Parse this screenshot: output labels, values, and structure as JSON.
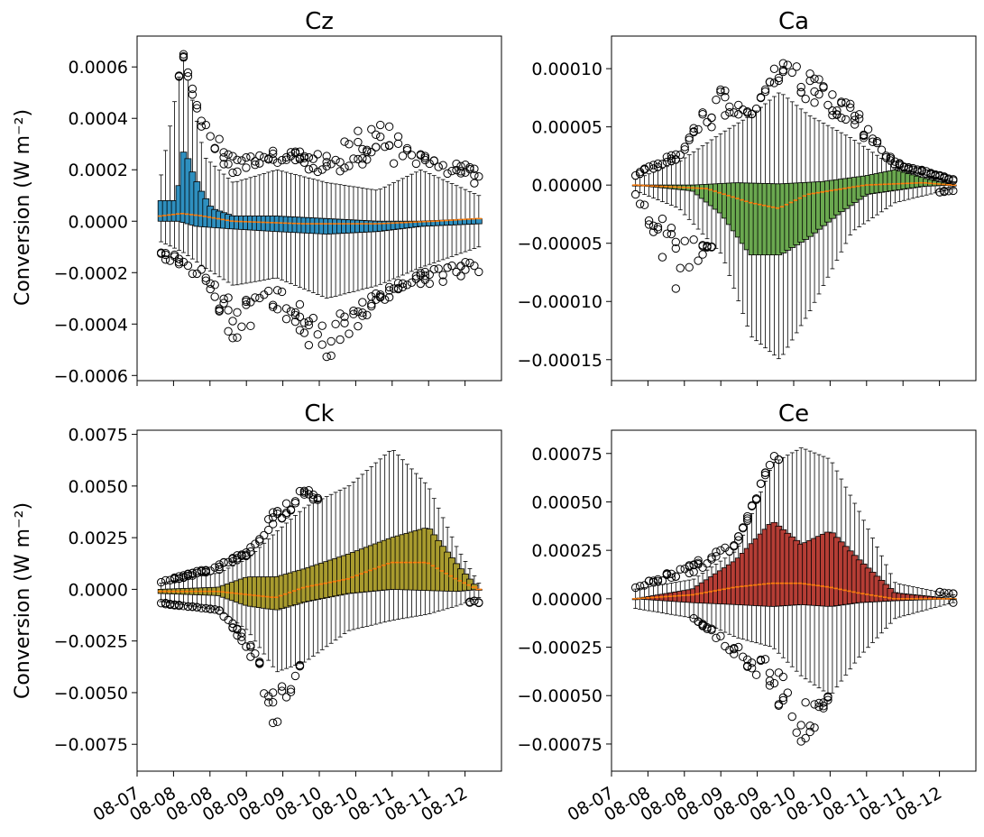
{
  "chart_data": [
    {
      "type": "box",
      "title": "Cz",
      "ylabel": "Conversion  (W m⁻²)",
      "ylim": [
        -0.00062,
        0.00072
      ],
      "yticks": [
        -0.0006,
        -0.0004,
        -0.0002,
        0.0,
        0.0002,
        0.0004,
        0.0006
      ],
      "ytick_labels": [
        "−0.0006",
        "−0.0004",
        "−0.0002",
        "0.0000",
        "0.0002",
        "0.0004",
        "0.0006"
      ],
      "xlim": [
        0,
        5
      ],
      "xtick_labels": [],
      "box_color": "#2e8fbf",
      "median_color": "#ff7f0e",
      "n_boxes": 72,
      "x_start": 0.33,
      "x_end": 4.75,
      "profile": {
        "q3": [
          [
            0.0,
            8e-05
          ],
          [
            0.22,
            8e-05
          ],
          [
            0.32,
            0.00029
          ],
          [
            0.42,
            0.0002
          ],
          [
            0.55,
            0.00012
          ],
          [
            0.7,
            5e-05
          ],
          [
            1.0,
            2e-05
          ],
          [
            1.6,
            2e-05
          ],
          [
            2.3,
            1e-05
          ],
          [
            3.0,
            0.0
          ],
          [
            3.6,
            0.0
          ],
          [
            4.4,
            1e-05
          ]
        ],
        "q1": [
          [
            0.0,
            0.0
          ],
          [
            0.25,
            0.0
          ],
          [
            0.5,
            -2e-05
          ],
          [
            1.0,
            -3e-05
          ],
          [
            1.6,
            -4e-05
          ],
          [
            2.3,
            -5e-05
          ],
          [
            3.0,
            -4e-05
          ],
          [
            3.6,
            -2e-05
          ],
          [
            4.4,
            -1e-05
          ]
        ],
        "median": [
          [
            0.0,
            2e-05
          ],
          [
            0.3,
            3e-05
          ],
          [
            0.6,
            2e-05
          ],
          [
            1.0,
            0.0
          ],
          [
            2.0,
            -1e-05
          ],
          [
            3.0,
            -1e-05
          ],
          [
            3.8,
            0.0
          ],
          [
            4.4,
            1e-05
          ]
        ],
        "whi_hi": [
          [
            0.0,
            0.00018
          ],
          [
            0.3,
            0.00064
          ],
          [
            0.45,
            0.00045
          ],
          [
            0.6,
            0.00025
          ],
          [
            1.0,
            0.00015
          ],
          [
            1.6,
            0.0002
          ],
          [
            2.3,
            0.00015
          ],
          [
            3.0,
            0.00012
          ],
          [
            3.6,
            0.0002
          ],
          [
            4.4,
            0.0001
          ]
        ],
        "whi_lo": [
          [
            0.0,
            -8e-05
          ],
          [
            0.3,
            -0.00012
          ],
          [
            0.6,
            -0.00018
          ],
          [
            1.0,
            -0.00025
          ],
          [
            1.6,
            -0.00022
          ],
          [
            2.3,
            -0.0003
          ],
          [
            3.0,
            -0.00025
          ],
          [
            3.6,
            -0.00018
          ],
          [
            4.4,
            -0.0001
          ]
        ],
        "flier_hi": [
          [
            0.0,
            0.00012
          ],
          [
            0.3,
            0.00066
          ],
          [
            0.45,
            0.0005
          ],
          [
            0.6,
            0.00042
          ],
          [
            1.0,
            0.00025
          ],
          [
            1.6,
            0.00028
          ],
          [
            2.3,
            0.00026
          ],
          [
            3.0,
            0.00044
          ],
          [
            3.6,
            0.00026
          ],
          [
            4.4,
            0.00022
          ]
        ],
        "flier_lo": [
          [
            0.0,
            -0.00015
          ],
          [
            0.3,
            -0.0002
          ],
          [
            0.6,
            -0.00022
          ],
          [
            1.0,
            -0.00048
          ],
          [
            1.6,
            -0.00035
          ],
          [
            2.3,
            -0.00056
          ],
          [
            3.0,
            -0.00032
          ],
          [
            3.6,
            -0.00025
          ],
          [
            4.4,
            -0.00022
          ]
        ]
      }
    },
    {
      "type": "box",
      "title": "Ca",
      "ylabel": "",
      "ylim": [
        -0.000168,
        0.000128
      ],
      "yticks": [
        -0.00015,
        -0.0001,
        -5e-05,
        0.0,
        5e-05,
        0.0001
      ],
      "ytick_labels": [
        "−0.00015",
        "−0.00010",
        "−0.00005",
        "0.00000",
        "0.00005",
        "0.00010"
      ],
      "xlim": [
        0,
        5
      ],
      "xtick_labels": [],
      "box_color": "#6aa84f",
      "median_color": "#ff7f0e",
      "n_boxes": 72,
      "x_start": 0.33,
      "x_end": 4.75,
      "profile": {
        "q3": [
          [
            0.0,
            0.0
          ],
          [
            0.8,
            0.0
          ],
          [
            1.4,
            2e-06
          ],
          [
            2.0,
            1e-06
          ],
          [
            2.6,
            3e-06
          ],
          [
            3.2,
            8e-06
          ],
          [
            3.6,
            1.3e-05
          ],
          [
            4.0,
            6e-06
          ],
          [
            4.4,
            0.0
          ]
        ],
        "q1": [
          [
            0.0,
            0.0
          ],
          [
            0.8,
            -5e-06
          ],
          [
            1.2,
            -2.5e-05
          ],
          [
            1.6,
            -6e-05
          ],
          [
            2.0,
            -6e-05
          ],
          [
            2.4,
            -4.5e-05
          ],
          [
            2.8,
            -2.5e-05
          ],
          [
            3.2,
            -8e-06
          ],
          [
            4.0,
            -1e-06
          ],
          [
            4.4,
            0.0
          ]
        ],
        "median": [
          [
            0.0,
            0.0
          ],
          [
            1.0,
            -3e-06
          ],
          [
            1.6,
            -1.5e-05
          ],
          [
            2.0,
            -2e-05
          ],
          [
            2.4,
            -8e-06
          ],
          [
            3.2,
            0.0
          ],
          [
            4.0,
            2e-06
          ],
          [
            4.4,
            0.0
          ]
        ],
        "whi_hi": [
          [
            0.0,
            5e-06
          ],
          [
            0.6,
            2e-05
          ],
          [
            1.2,
            4.5e-05
          ],
          [
            1.6,
            6e-05
          ],
          [
            2.0,
            8e-05
          ],
          [
            2.4,
            6e-05
          ],
          [
            3.0,
            4e-05
          ],
          [
            3.6,
            1.5e-05
          ],
          [
            4.4,
            3e-06
          ]
        ],
        "whi_lo": [
          [
            0.0,
            -5e-06
          ],
          [
            0.6,
            -2e-05
          ],
          [
            1.2,
            -6e-05
          ],
          [
            1.6,
            -0.00013
          ],
          [
            2.0,
            -0.00015
          ],
          [
            2.4,
            -0.00011
          ],
          [
            3.0,
            -4e-05
          ],
          [
            3.6,
            -1.5e-05
          ],
          [
            4.4,
            -3e-06
          ]
        ],
        "flier_hi": [
          [
            0.0,
            1e-05
          ],
          [
            0.6,
            3e-05
          ],
          [
            1.2,
            9e-05
          ],
          [
            1.6,
            6e-05
          ],
          [
            2.0,
            0.00011
          ],
          [
            2.4,
            0.0001
          ],
          [
            3.0,
            7e-05
          ],
          [
            3.6,
            2e-05
          ],
          [
            4.4,
            5e-06
          ]
        ],
        "flier_lo": [
          [
            0.0,
            -1e-05
          ],
          [
            0.6,
            -9.5e-05
          ],
          [
            1.2,
            -4e-05
          ],
          [
            1.6,
            -8e-05
          ],
          [
            2.0,
            -0.00014
          ],
          [
            2.4,
            -5e-05
          ],
          [
            3.0,
            -2e-05
          ],
          [
            3.6,
            -1e-05
          ],
          [
            4.4,
            -5e-06
          ]
        ]
      }
    },
    {
      "type": "box",
      "title": "Ck",
      "ylabel": "Conversion  (W m⁻²)",
      "ylim": [
        -0.0088,
        0.0077
      ],
      "yticks": [
        -0.0075,
        -0.005,
        -0.0025,
        0.0,
        0.0025,
        0.005,
        0.0075
      ],
      "ytick_labels": [
        "−0.0075",
        "−0.0050",
        "−0.0025",
        "0.0000",
        "0.0025",
        "0.0050",
        "0.0075"
      ],
      "xlim": [
        0,
        5
      ],
      "xtick_labels": [
        "08-07",
        "08-08",
        "08-08",
        "08-09",
        "08-09",
        "08-10",
        "08-10",
        "08-11",
        "08-11",
        "08-12"
      ],
      "box_color": "#a89b2e",
      "median_color": "#ff7f0e",
      "n_boxes": 72,
      "x_start": 0.33,
      "x_end": 4.75,
      "profile": {
        "q3": [
          [
            0.0,
            0.0
          ],
          [
            0.8,
            0.0001
          ],
          [
            1.2,
            0.0006
          ],
          [
            1.6,
            0.0006
          ],
          [
            2.0,
            0.001
          ],
          [
            2.6,
            0.0017
          ],
          [
            3.2,
            0.0025
          ],
          [
            3.7,
            0.003
          ],
          [
            4.1,
            0.0012
          ],
          [
            4.4,
            0.0
          ]
        ],
        "q1": [
          [
            0.0,
            -0.0002
          ],
          [
            0.8,
            -0.0003
          ],
          [
            1.2,
            -0.0008
          ],
          [
            1.6,
            -0.001
          ],
          [
            2.0,
            -0.0006
          ],
          [
            2.6,
            -0.0002
          ],
          [
            3.2,
            0.0
          ],
          [
            4.1,
            -0.0001
          ],
          [
            4.4,
            0.0
          ]
        ],
        "median": [
          [
            0.0,
            -0.0001
          ],
          [
            0.8,
            -0.0001
          ],
          [
            1.6,
            -0.0004
          ],
          [
            2.0,
            0.0001
          ],
          [
            2.6,
            0.0005
          ],
          [
            3.2,
            0.0013
          ],
          [
            3.7,
            0.0013
          ],
          [
            4.1,
            0.0005
          ],
          [
            4.4,
            0.0
          ]
        ],
        "whi_hi": [
          [
            0.0,
            0.0003
          ],
          [
            0.8,
            0.0008
          ],
          [
            1.2,
            0.0015
          ],
          [
            1.6,
            0.0028
          ],
          [
            2.0,
            0.004
          ],
          [
            2.6,
            0.005
          ],
          [
            3.2,
            0.0068
          ],
          [
            3.7,
            0.005
          ],
          [
            4.1,
            0.002
          ],
          [
            4.4,
            0.0003
          ]
        ],
        "whi_lo": [
          [
            0.0,
            -0.0006
          ],
          [
            0.8,
            -0.001
          ],
          [
            1.2,
            -0.002
          ],
          [
            1.6,
            -0.004
          ],
          [
            2.0,
            -0.0035
          ],
          [
            2.6,
            -0.002
          ],
          [
            3.2,
            -0.0015
          ],
          [
            3.7,
            -0.0012
          ],
          [
            4.1,
            -0.0008
          ],
          [
            4.4,
            -0.0004
          ]
        ],
        "flier_hi": [
          [
            0.0,
            0.0004
          ],
          [
            0.8,
            0.0012
          ],
          [
            1.2,
            0.002
          ],
          [
            1.6,
            0.004
          ],
          [
            2.0,
            0.005
          ],
          [
            2.6,
            0.003
          ],
          [
            3.2,
            0.006
          ],
          [
            3.7,
            0.003
          ],
          [
            4.1,
            0.0008
          ],
          [
            4.4,
            0.0002
          ]
        ],
        "flier_lo": [
          [
            0.0,
            -0.0007
          ],
          [
            0.8,
            -0.001
          ],
          [
            1.2,
            -0.003
          ],
          [
            1.6,
            -0.007
          ],
          [
            2.0,
            -0.003
          ],
          [
            2.6,
            -0.001
          ],
          [
            3.2,
            -0.0005
          ],
          [
            3.7,
            -0.0003
          ],
          [
            4.1,
            -0.0006
          ],
          [
            4.4,
            -0.0007
          ]
        ]
      }
    },
    {
      "type": "box",
      "title": "Ce",
      "ylabel": "",
      "ylim": [
        -0.00089,
        0.00087
      ],
      "yticks": [
        -0.00075,
        -0.0005,
        -0.00025,
        0.0,
        0.00025,
        0.0005,
        0.00075
      ],
      "ytick_labels": [
        "−0.00075",
        "−0.00050",
        "−0.00025",
        "0.00000",
        "0.00025",
        "0.00050",
        "0.00075"
      ],
      "xlim": [
        0,
        5
      ],
      "xtick_labels": [
        "08-07",
        "08-08",
        "08-08",
        "08-09",
        "08-09",
        "08-10",
        "08-10",
        "08-11",
        "08-11",
        "08-12"
      ],
      "box_color": "#b53d35",
      "median_color": "#ff7f0e",
      "n_boxes": 72,
      "x_start": 0.33,
      "x_end": 4.75,
      "profile": {
        "q3": [
          [
            0.0,
            0.0
          ],
          [
            0.8,
            5e-05
          ],
          [
            1.4,
            0.0002
          ],
          [
            1.9,
            0.0004
          ],
          [
            2.3,
            0.00028
          ],
          [
            2.7,
            0.00035
          ],
          [
            3.1,
            0.0002
          ],
          [
            3.6,
            3e-05
          ],
          [
            4.4,
            0.0
          ]
        ],
        "q1": [
          [
            0.0,
            0.0
          ],
          [
            0.8,
            -2e-05
          ],
          [
            1.4,
            -3e-05
          ],
          [
            1.9,
            -4e-05
          ],
          [
            2.3,
            -3e-05
          ],
          [
            2.7,
            -4e-05
          ],
          [
            3.1,
            -2e-05
          ],
          [
            3.6,
            -1e-05
          ],
          [
            4.4,
            0.0
          ]
        ],
        "median": [
          [
            0.0,
            0.0
          ],
          [
            0.8,
            2e-05
          ],
          [
            1.4,
            6e-05
          ],
          [
            1.9,
            8e-05
          ],
          [
            2.3,
            8e-05
          ],
          [
            2.7,
            6e-05
          ],
          [
            3.1,
            3e-05
          ],
          [
            3.6,
            0.0
          ],
          [
            4.4,
            0.0
          ]
        ],
        "whi_hi": [
          [
            0.0,
            5e-05
          ],
          [
            0.8,
            0.0001
          ],
          [
            1.4,
            0.00025
          ],
          [
            1.9,
            0.0007
          ],
          [
            2.3,
            0.00078
          ],
          [
            2.7,
            0.00072
          ],
          [
            3.1,
            0.00045
          ],
          [
            3.6,
            8e-05
          ],
          [
            4.4,
            2e-05
          ]
        ],
        "whi_lo": [
          [
            0.0,
            -5e-05
          ],
          [
            0.8,
            -0.0001
          ],
          [
            1.4,
            -0.0002
          ],
          [
            1.9,
            -0.00025
          ],
          [
            2.3,
            -0.0004
          ],
          [
            2.7,
            -0.0005
          ],
          [
            3.1,
            -0.0003
          ],
          [
            3.6,
            -0.0001
          ],
          [
            4.4,
            -2e-05
          ]
        ],
        "flier_hi": [
          [
            0.0,
            6e-05
          ],
          [
            0.8,
            0.0002
          ],
          [
            1.4,
            0.0003
          ],
          [
            1.9,
            0.00075
          ],
          [
            2.3,
            0.0006
          ],
          [
            2.7,
            0.0007
          ],
          [
            3.1,
            0.0004
          ],
          [
            3.6,
            5e-05
          ],
          [
            4.4,
            3e-05
          ]
        ],
        "flier_lo": [
          [
            0.0,
            -5e-05
          ],
          [
            0.8,
            -0.0001
          ],
          [
            1.4,
            -0.0003
          ],
          [
            1.9,
            -0.0005
          ],
          [
            2.3,
            -0.0008
          ],
          [
            2.7,
            -0.0005
          ],
          [
            3.1,
            -0.0002
          ],
          [
            3.6,
            -5e-05
          ],
          [
            4.4,
            -2e-05
          ]
        ]
      }
    }
  ]
}
